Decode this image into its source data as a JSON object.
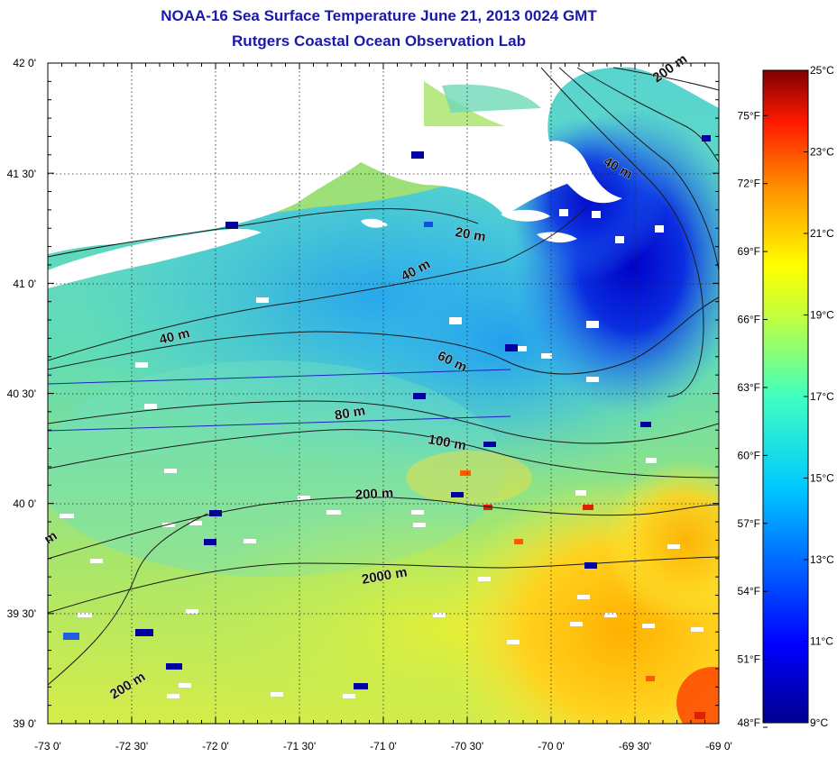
{
  "title_line1": "NOAA-16 Sea Surface Temperature June 21, 2013 0024 GMT",
  "title_line2": "Rutgers Coastal Ocean Observation Lab",
  "map": {
    "lon_range": [
      -73.0,
      -69.0
    ],
    "lat_range": [
      39.0,
      42.0
    ],
    "grid": true,
    "lon_ticks": [
      "-73 0'",
      "-72 30'",
      "-72 0'",
      "-71 30'",
      "-71 0'",
      "-70 30'",
      "-70 0'",
      "-69 30'",
      "-69 0'"
    ],
    "lat_ticks": [
      "39 0'",
      "39 30'",
      "40 0'",
      "40 30'",
      "41 0'",
      "41 30'",
      "42 0'"
    ],
    "contour_labels": [
      "20 m",
      "40 m",
      "40 m",
      "40 m",
      "60 m",
      "80 m",
      "100 m",
      "200 m",
      "2000 m",
      "200 m",
      "200 m",
      "m"
    ]
  },
  "colorbar": {
    "celsius_labels": [
      "25°C",
      "23°C",
      "21°C",
      "19°C",
      "17°C",
      "15°C",
      "13°C",
      "11°C",
      "9°C"
    ],
    "celsius_values": [
      25,
      23,
      21,
      19,
      17,
      15,
      13,
      11,
      9
    ],
    "fahrenheit_labels": [
      "75°F",
      "72°F",
      "69°F",
      "66°F",
      "63°F",
      "60°F",
      "57°F",
      "54°F",
      "51°F",
      "48°F"
    ],
    "fahrenheit_values": [
      75,
      72,
      69,
      66,
      63,
      60,
      57,
      54,
      51,
      48
    ],
    "range_c": [
      9,
      25
    ]
  }
}
